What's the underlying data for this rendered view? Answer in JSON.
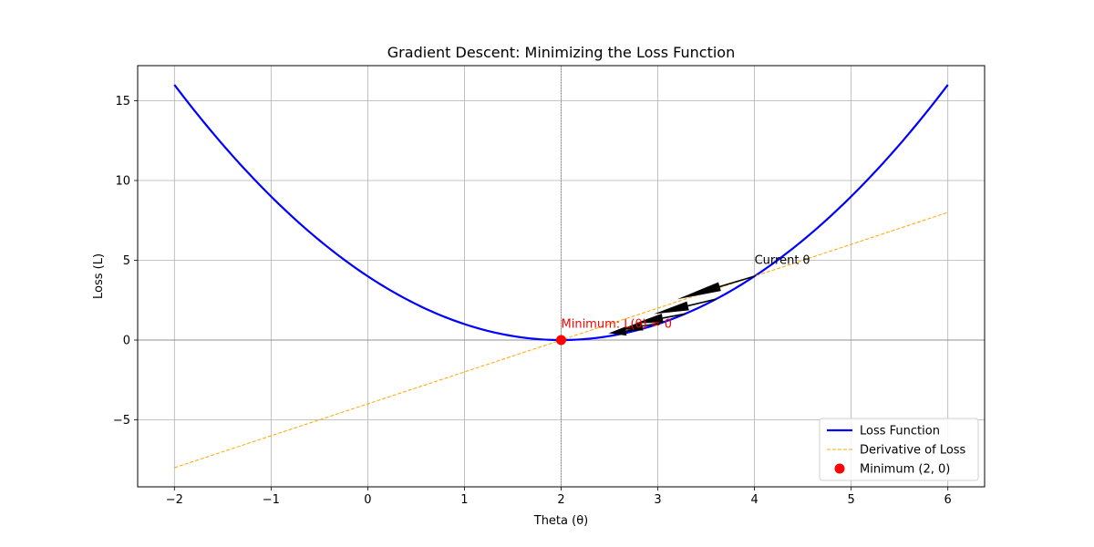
{
  "chart_data": {
    "type": "line",
    "title": "Gradient Descent: Minimizing the Loss Function",
    "xlabel": "Theta (θ)",
    "ylabel": "Loss (L)",
    "xlim": [
      -2.38,
      6.38
    ],
    "ylim": [
      -9.2,
      17.2
    ],
    "xticks": [
      -2,
      -1,
      0,
      1,
      2,
      3,
      4,
      5,
      6
    ],
    "xtick_labels": [
      "−2",
      "−1",
      "0",
      "1",
      "2",
      "3",
      "4",
      "5",
      "6"
    ],
    "yticks": [
      -5,
      0,
      5,
      10,
      15
    ],
    "ytick_labels": [
      "−5",
      "0",
      "5",
      "10",
      "15"
    ],
    "grid": true,
    "legend_position": "bottom-right",
    "series": [
      {
        "name": "Loss Function",
        "kind": "line",
        "color": "#0000ff",
        "style": "solid",
        "function": "(x-2)^2",
        "x_range": [
          -2,
          6
        ]
      },
      {
        "name": "Derivative of Loss",
        "kind": "line",
        "color": "#ffa500",
        "style": "dashed",
        "function": "2*(x-2)",
        "x_range": [
          -2,
          6
        ]
      },
      {
        "name": "Minimum (2, 0)",
        "kind": "scatter",
        "color": "#ff0000",
        "points": [
          [
            2,
            0
          ]
        ]
      }
    ],
    "gradient_steps": [
      {
        "from": [
          4.0,
          4.0
        ],
        "to": [
          3.2,
          2.56
        ]
      },
      {
        "from": [
          3.6,
          2.56
        ],
        "to": [
          2.96,
          1.6384
        ]
      },
      {
        "from": [
          3.28,
          1.6384
        ],
        "to": [
          2.768,
          1.0486
        ]
      },
      {
        "from": [
          3.024,
          1.0486
        ],
        "to": [
          2.6144,
          0.6711
        ]
      },
      {
        "from": [
          2.8192,
          0.6711
        ],
        "to": [
          2.4915,
          0.4295
        ]
      }
    ],
    "annotations": [
      {
        "text": "Current θ",
        "x": 4.0,
        "y": 5.0,
        "color": "#000000"
      },
      {
        "text": "Minimum: L(θ) = 0",
        "x": 2.0,
        "y": 1.0,
        "color": "#ff0000"
      }
    ],
    "reference_lines": [
      {
        "orientation": "horizontal",
        "value": 0,
        "color": "#808080"
      },
      {
        "orientation": "vertical",
        "value": 2,
        "color": "#808080"
      }
    ]
  }
}
